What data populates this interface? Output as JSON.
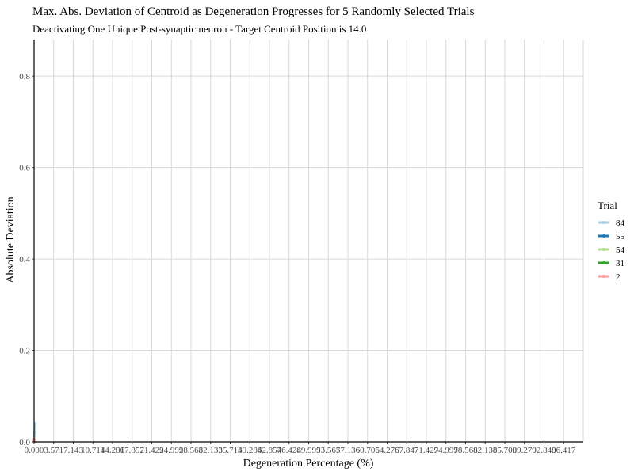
{
  "chart_data": {
    "type": "line",
    "title": "Max. Abs. Deviation of Centroid as Degeneration Progresses for 5 Randomly Selected Trials",
    "subtitle": "Deactivating One Unique Post-synaptic neuron - Target Centroid Position is 14.0",
    "xlabel": "Degeneration Percentage (%)",
    "ylabel": "Absolute Deviation",
    "x_ticks": [
      "0.000",
      "3.571",
      "7.143",
      "10.714",
      "14.286",
      "17.857",
      "21.429",
      "24.999",
      "28.568",
      "32.133",
      "35.714",
      "39.286",
      "42.857",
      "46.428",
      "49.999",
      "53.567",
      "57.136",
      "60.705",
      "64.276",
      "67.847",
      "71.429",
      "74.999",
      "78.568",
      "82.138",
      "85.709",
      "89.279",
      "92.848",
      "96.417"
    ],
    "y_ticks": [
      "0.0",
      "0.2",
      "0.4",
      "0.6",
      "0.8"
    ],
    "ylim": [
      0,
      0.88
    ],
    "grid": true,
    "legend": {
      "title": "Trial",
      "placement": "right",
      "entries": [
        {
          "name": "84",
          "color": "#a6cee3"
        },
        {
          "name": "55",
          "color": "#1f78b4"
        },
        {
          "name": "54",
          "color": "#b2df8a"
        },
        {
          "name": "31",
          "color": "#33a02c"
        },
        {
          "name": "2",
          "color": "#fb9a99"
        }
      ]
    },
    "series": [
      {
        "name": "84",
        "color": "#a6cee3",
        "x": [
          0.0,
          0.1,
          0.2
        ],
        "y": [
          0.0,
          0.02,
          0.04
        ]
      },
      {
        "name": "55",
        "color": "#1f78b4",
        "x": [
          0.0
        ],
        "y": [
          0.0
        ]
      },
      {
        "name": "54",
        "color": "#b2df8a",
        "x": [
          0.0
        ],
        "y": [
          0.0
        ]
      },
      {
        "name": "31",
        "color": "#33a02c",
        "x": [
          0.0
        ],
        "y": [
          0.0
        ]
      },
      {
        "name": "2",
        "color": "#fb9a99",
        "x": [
          0.0,
          0.05
        ],
        "y": [
          0.0,
          0.005
        ]
      }
    ]
  }
}
